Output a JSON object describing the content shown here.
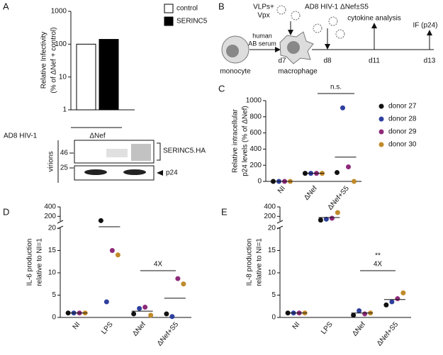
{
  "panels": [
    "A",
    "B",
    "C",
    "D",
    "E"
  ],
  "diagram": {
    "stimulus": [
      "VLPs+",
      "Vpx"
    ],
    "virus": "AD8 HIV-1 ΔNef±S5",
    "serum": [
      "human",
      "AB serum"
    ],
    "days": [
      "d7",
      "d8",
      "d11",
      "d13"
    ],
    "cells": [
      "monocyte",
      "macrophage"
    ],
    "readouts": [
      "cytokine analysis",
      "IF (p24)"
    ]
  },
  "blot": {
    "sample_label": "virions",
    "markers": [
      "46",
      "25"
    ],
    "bands": [
      "SERINC5.HA",
      "p24"
    ]
  },
  "chart_data": [
    {
      "type": "bar",
      "ylabel": [
        "Relative Infectivity",
        "(% of ΔNef + control)"
      ],
      "xlabel": "AD8 HIV-1",
      "log_scale": true,
      "ylim": [
        1,
        1000
      ],
      "yticks": [
        1,
        10,
        100,
        1000
      ],
      "categories": [
        "ΔNef"
      ],
      "legend": "upper right",
      "series": [
        {
          "name": "control",
          "color": "#ffffff",
          "values": [
            100
          ]
        },
        {
          "name": "SERINC5",
          "color": "#000000",
          "values": [
            140
          ]
        }
      ]
    },
    {
      "type": "dotplot",
      "ylabel": [
        "Relative intracellular",
        "p24 levels (% of ΔNef)"
      ],
      "ylim": [
        0,
        1000
      ],
      "yticks": [
        0,
        200,
        400,
        600,
        800,
        1000
      ],
      "categories": [
        "NI",
        "ΔNef",
        "ΔNef+S5"
      ],
      "legend": "right",
      "series": [
        {
          "name": "donor 27",
          "color": "#111111",
          "values": [
            0,
            100,
            110
          ]
        },
        {
          "name": "donor 28",
          "color": "#2e3f9e",
          "values": [
            0,
            100,
            910
          ]
        },
        {
          "name": "donor 29",
          "color": "#8e2a7a",
          "values": [
            0,
            100,
            180
          ]
        },
        {
          "name": "donor 30",
          "color": "#c08a2b",
          "values": [
            0,
            100,
            0
          ]
        }
      ],
      "means": [
        0,
        100,
        300
      ],
      "annotations": [
        "n.s."
      ]
    },
    {
      "type": "dotplot",
      "ylabel": [
        "IL-6 production",
        "relative to NI=1"
      ],
      "ylim": [
        0,
        400
      ],
      "ybreak": [
        20,
        100
      ],
      "yticks": [
        0,
        5,
        10,
        15,
        20,
        200,
        400
      ],
      "categories": [
        "NI",
        "LPS",
        "ΔNef",
        "ΔNef+S5"
      ],
      "series": [
        {
          "color": "#111111",
          "values": [
            1,
            110,
            0.8,
            0.8
          ]
        },
        {
          "color": "#2e3f9e",
          "values": [
            1,
            3.5,
            2,
            0.2
          ]
        },
        {
          "color": "#8e2a7a",
          "values": [
            1,
            15,
            2.3,
            8.7
          ]
        },
        {
          "color": "#c08a2b",
          "values": [
            1,
            14,
            0.5,
            7.5
          ]
        }
      ],
      "means": [
        1,
        35.6,
        1.4,
        4.3
      ],
      "annotations": [
        "4X"
      ]
    },
    {
      "type": "dotplot",
      "ylabel": [
        "IL-8 production",
        "relative to NI=1"
      ],
      "ylim": [
        0,
        400
      ],
      "ybreak": [
        20,
        100
      ],
      "yticks": [
        0,
        5,
        10,
        15,
        20,
        200,
        400
      ],
      "categories": [
        "NI",
        "LPS",
        "ΔNef",
        "ΔNef+S5"
      ],
      "series": [
        {
          "color": "#111111",
          "values": [
            1,
            120,
            0.5,
            2.8
          ]
        },
        {
          "color": "#2e3f9e",
          "values": [
            1,
            140,
            1.5,
            3.5
          ]
        },
        {
          "color": "#8e2a7a",
          "values": [
            1,
            160,
            0.8,
            4.2
          ]
        },
        {
          "color": "#c08a2b",
          "values": [
            1,
            280,
            1,
            5.5
          ]
        }
      ],
      "means": [
        1,
        175,
        1,
        4
      ],
      "annotations": [
        "**",
        "4X"
      ]
    }
  ]
}
